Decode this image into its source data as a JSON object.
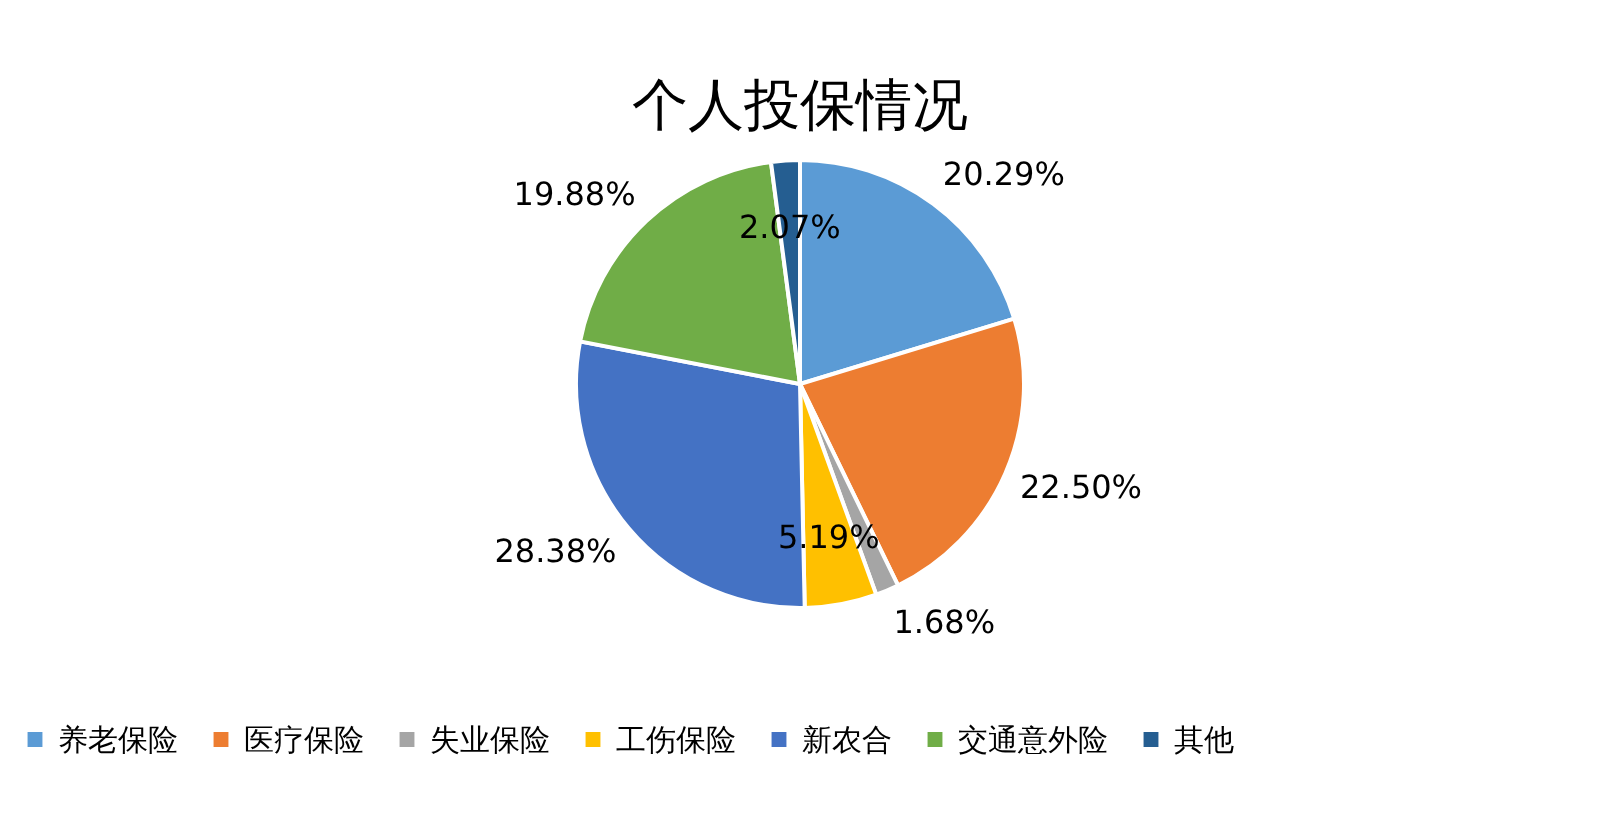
{
  "chart_data": {
    "type": "pie",
    "title": "个人投保情况",
    "categories": [
      "养老保险",
      "医疗保险",
      "失业保险",
      "工伤保险",
      "新农合",
      "交通意外险",
      "其他"
    ],
    "values": [
      20.29,
      22.5,
      1.68,
      5.19,
      28.38,
      19.88,
      2.07
    ],
    "colors": [
      "#5b9bd5",
      "#ed7d31",
      "#a5a5a5",
      "#ffc000",
      "#4472c4",
      "#70ad47",
      "#255e91"
    ],
    "value_labels": [
      "20.29%",
      "22.50%",
      "1.68%",
      "5.19%",
      "28.38%",
      "19.88%",
      "2.07%"
    ],
    "legend": "bottom"
  }
}
